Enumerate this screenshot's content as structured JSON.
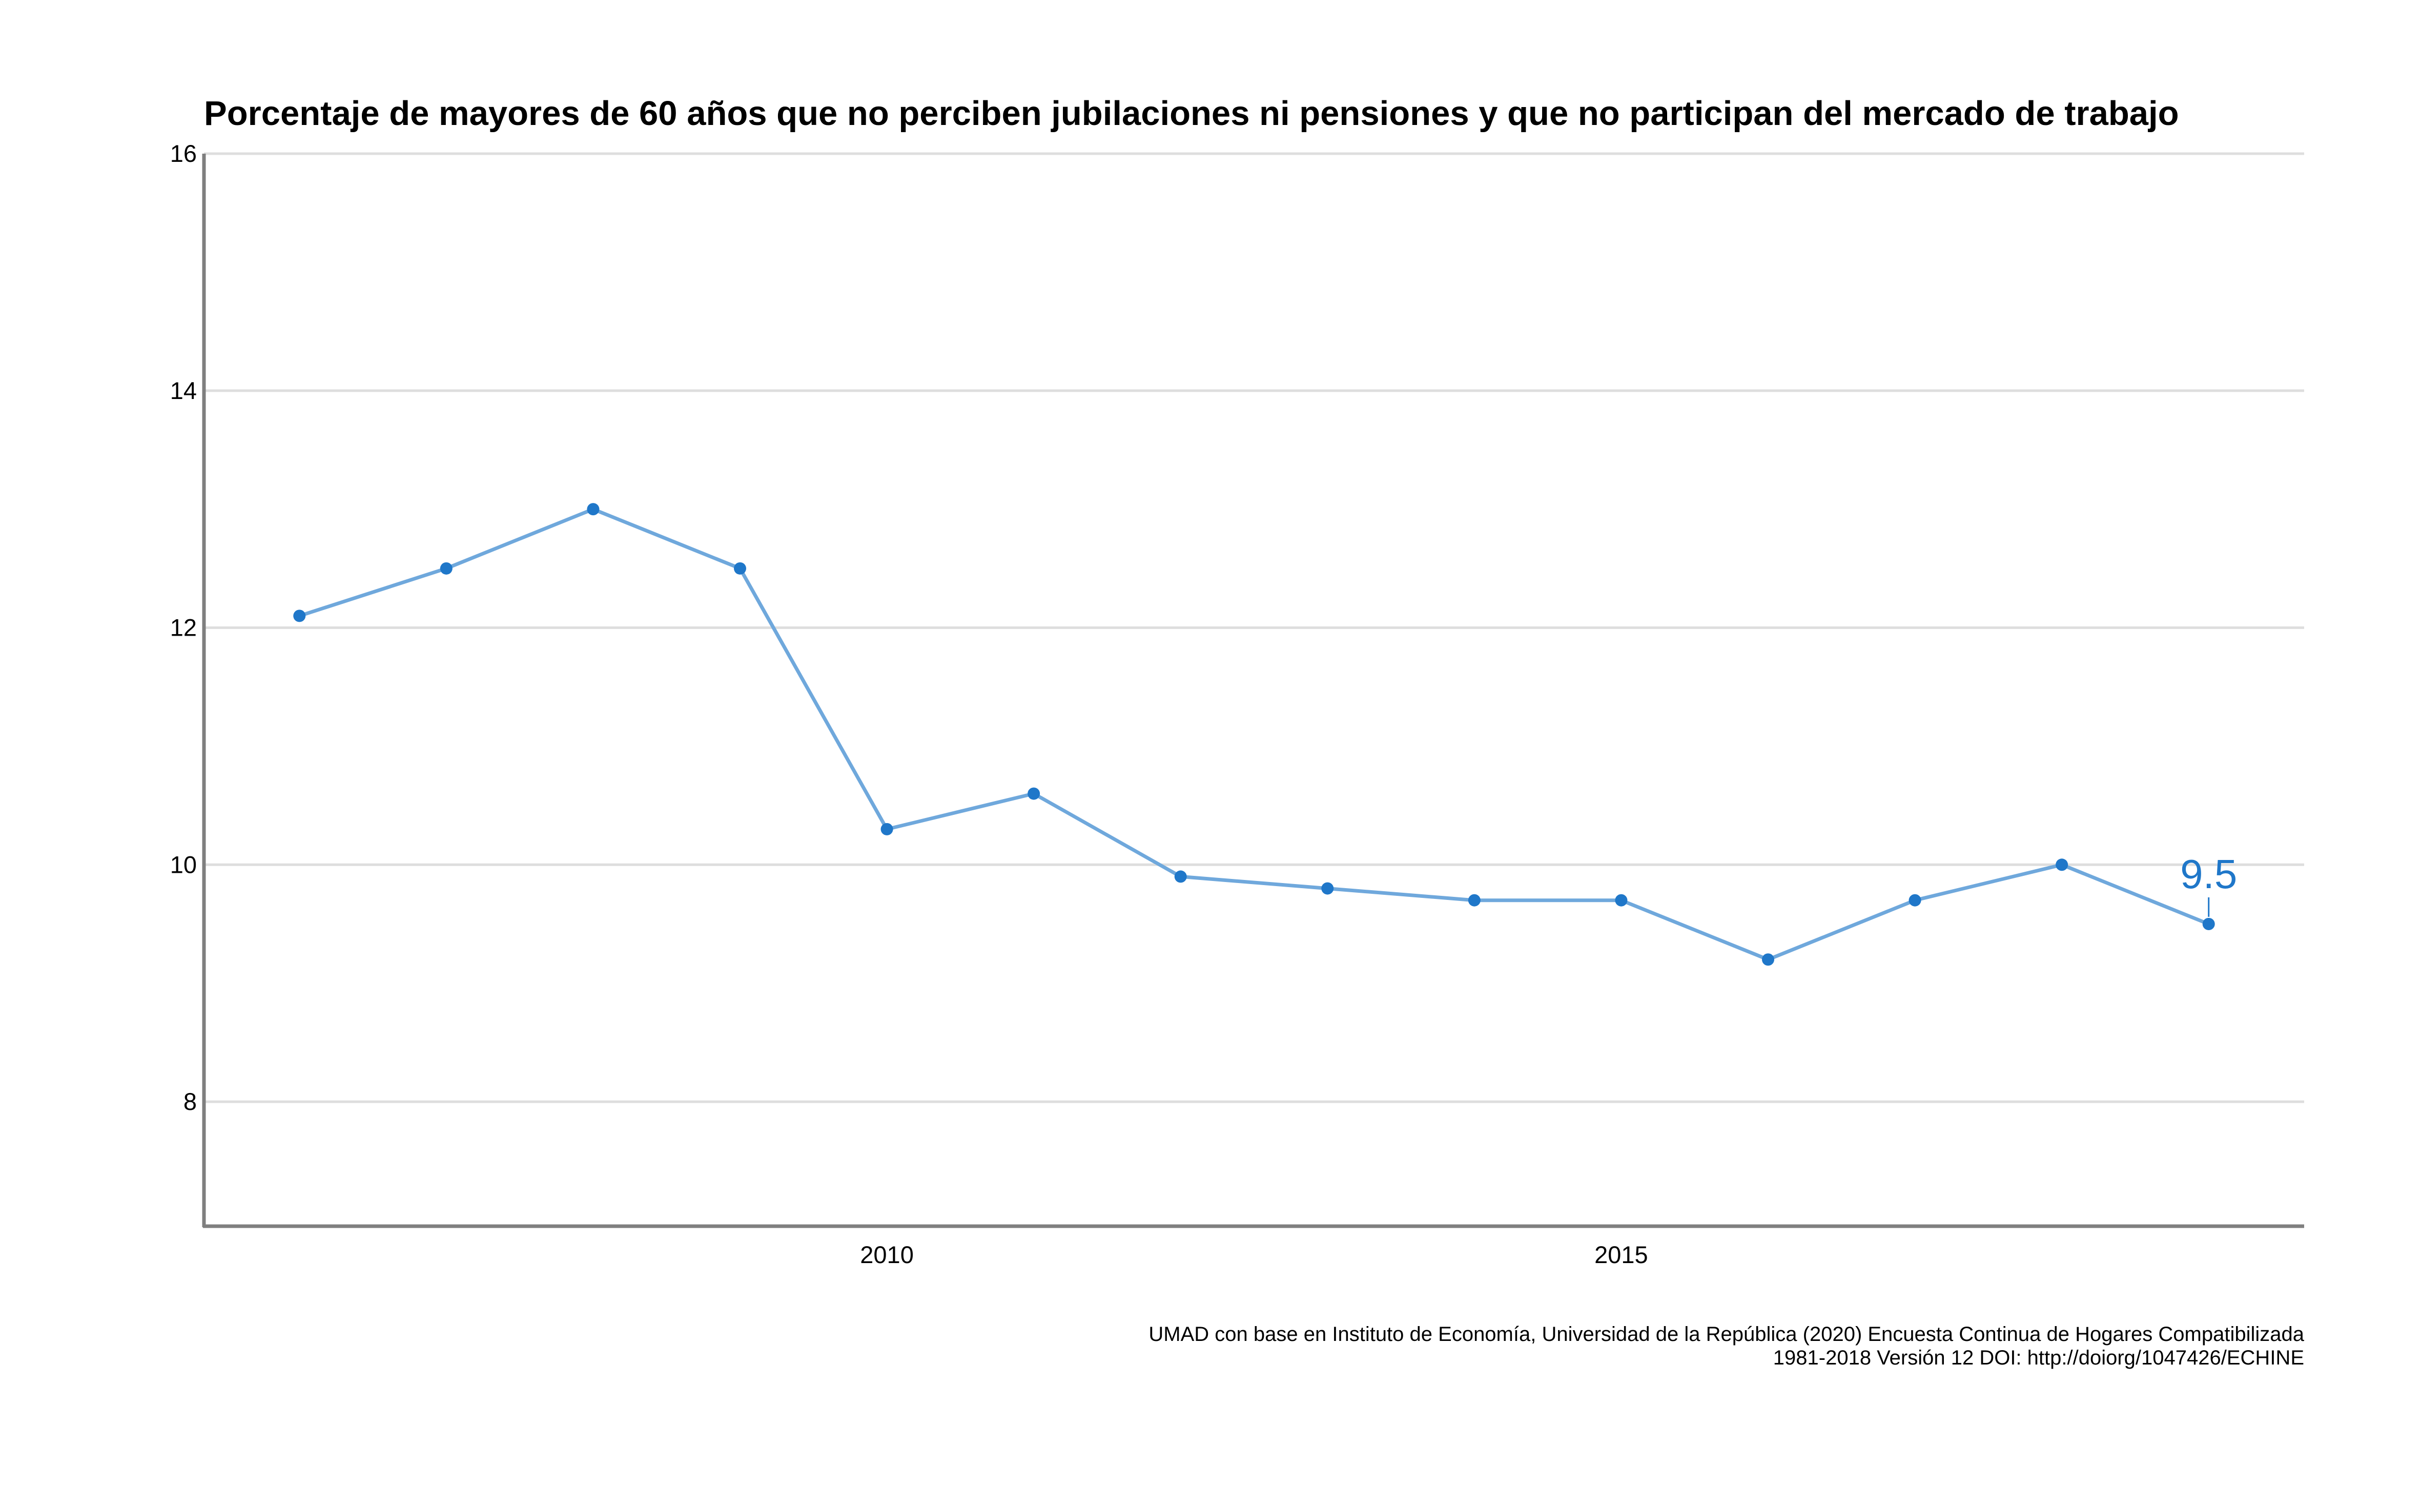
{
  "chart_data": {
    "type": "line",
    "title": "Porcentaje de mayores de 60 años que no perciben jubilaciones ni pensiones y que no participan del mercado de trabajo",
    "subtitle": "",
    "xlabel": "",
    "ylabel": "",
    "x": [
      2006,
      2007,
      2008,
      2009,
      2010,
      2011,
      2012,
      2013,
      2014,
      2015,
      2016,
      2017,
      2018,
      2019
    ],
    "series": [
      {
        "values": [
          12.1,
          12.5,
          13.0,
          12.5,
          10.3,
          10.6,
          9.9,
          9.8,
          9.7,
          9.7,
          9.2,
          9.7,
          10.0,
          9.5
        ]
      }
    ],
    "xlim": [
      2005.35,
      2019.65
    ],
    "ylim": [
      6.95,
      16
    ],
    "x_ticks": [
      2010,
      2015
    ],
    "x_tick_labels": [
      "2010",
      "2015"
    ],
    "y_ticks": [
      8,
      10,
      12,
      14,
      16
    ],
    "y_tick_labels": [
      "8",
      "10",
      "12",
      "14",
      "16"
    ],
    "annotations": [
      {
        "x": 2019,
        "y": 9.5,
        "text": "9.5"
      }
    ],
    "caption_lines": [
      "UMAD con base en Instituto de Economía, Universidad de la República (2020) Encuesta Continua de Hogares Compatibilizada",
      "1981-2018 Versión 12 DOI: http://doiorg/1047426/ECHINE"
    ],
    "grid": "horizontal",
    "legend": "none",
    "colors": {
      "line": "#6FA8DC",
      "point": "#1F77C9",
      "label": "#1F77C9",
      "grid": "#DEDEDE",
      "axis": "#7F7F7F",
      "text": "#000000"
    }
  }
}
